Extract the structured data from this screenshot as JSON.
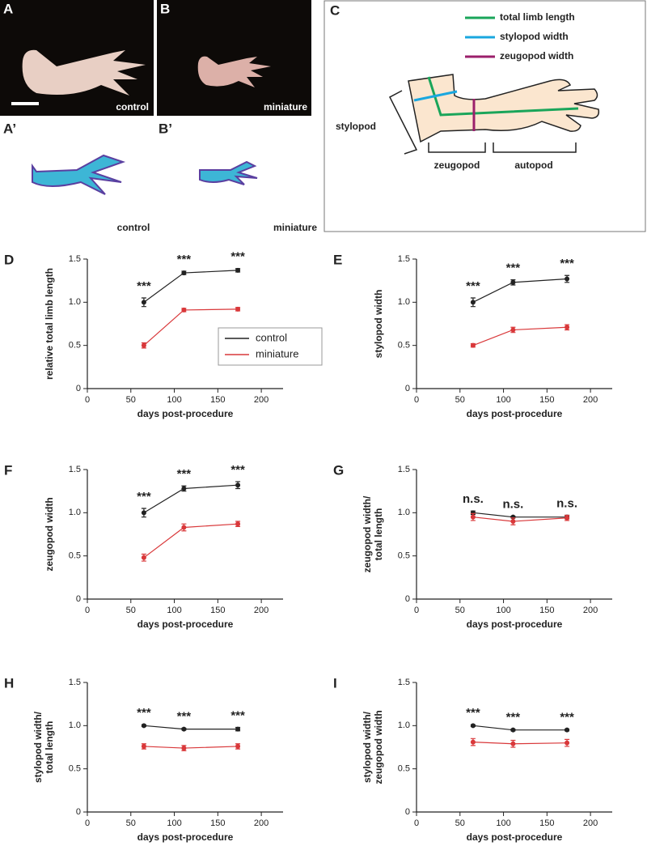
{
  "photos": [
    {
      "panel": "A",
      "label": "control"
    },
    {
      "panel": "B",
      "label": "miniature"
    }
  ],
  "stains": [
    {
      "panel": "A’",
      "label": "control"
    },
    {
      "panel": "B’",
      "label": "miniature"
    }
  ],
  "diagram": {
    "panel": "C",
    "legend": [
      "total limb length",
      "stylopod width",
      "zeugopod width"
    ],
    "regions": [
      "stylopod",
      "zeugopod",
      "autopod"
    ]
  },
  "chart_data": [
    {
      "type": "line",
      "panel": "D",
      "ylabel": [
        "relative total limb length"
      ],
      "xlabel": "days post-procedure",
      "xlim": [
        0,
        225
      ],
      "ylim": [
        0,
        1.5
      ],
      "xticks": [
        0,
        50,
        100,
        150,
        200
      ],
      "yticks": [
        0,
        0.5,
        {
          "value": 1,
          "label": "1.0"
        },
        1.5
      ],
      "x": [
        65,
        111,
        173
      ],
      "legend": "right",
      "annotations": [
        "***",
        "***",
        "***"
      ],
      "series": [
        {
          "name": "control",
          "color": "#222222",
          "values": [
            1.0,
            1.34,
            1.37
          ],
          "errors": [
            0.05,
            0.02,
            0.02
          ]
        },
        {
          "name": "miniature",
          "color": "#d9383a",
          "values": [
            0.5,
            0.91,
            0.92
          ],
          "errors": [
            0.03,
            0.02,
            0.02
          ]
        }
      ]
    },
    {
      "type": "line",
      "panel": "E",
      "ylabel": [
        "stylopod width"
      ],
      "xlabel": "days post-procedure",
      "xlim": [
        0,
        225
      ],
      "ylim": [
        0,
        1.5
      ],
      "xticks": [
        0,
        50,
        100,
        150,
        200
      ],
      "yticks": [
        0,
        0.5,
        {
          "value": 1,
          "label": "1.0"
        },
        1.5
      ],
      "x": [
        65,
        111,
        173
      ],
      "annotations": [
        "***",
        "***",
        "***"
      ],
      "series": [
        {
          "color": "#222222",
          "values": [
            1.0,
            1.23,
            1.27
          ],
          "errors": [
            0.05,
            0.03,
            0.04
          ]
        },
        {
          "color": "#d9383a",
          "values": [
            0.5,
            0.68,
            0.71
          ],
          "errors": [
            0.02,
            0.03,
            0.03
          ]
        }
      ]
    },
    {
      "type": "line",
      "panel": "F",
      "ylabel": [
        "zeugopod width"
      ],
      "xlabel": "days post-procedure",
      "xlim": [
        0,
        225
      ],
      "ylim": [
        0,
        1.5
      ],
      "xticks": [
        0,
        50,
        100,
        150,
        200
      ],
      "yticks": [
        0,
        0.5,
        {
          "value": 1,
          "label": "1.0"
        },
        1.5
      ],
      "x": [
        65,
        111,
        173
      ],
      "annotations": [
        "***",
        "***",
        "***"
      ],
      "series": [
        {
          "color": "#222222",
          "values": [
            1.0,
            1.28,
            1.32
          ],
          "errors": [
            0.05,
            0.03,
            0.04
          ]
        },
        {
          "color": "#d9383a",
          "values": [
            0.48,
            0.83,
            0.87
          ],
          "errors": [
            0.04,
            0.04,
            0.03
          ]
        }
      ]
    },
    {
      "type": "line",
      "panel": "G",
      "ylabel": [
        "zeugopod width/",
        "total length"
      ],
      "xlabel": "days post-procedure",
      "xlim": [
        0,
        225
      ],
      "ylim": [
        0,
        1.5
      ],
      "xticks": [
        0,
        50,
        100,
        150,
        200
      ],
      "yticks": [
        0,
        0.5,
        {
          "value": 1,
          "label": "1.0"
        },
        1.5
      ],
      "x": [
        65,
        111,
        173
      ],
      "annotations": [
        "n.s.",
        "n.s.",
        "n.s."
      ],
      "series": [
        {
          "color": "#222222",
          "values": [
            1.0,
            0.95,
            0.95
          ],
          "errors": [
            0.02,
            0.01,
            0.02
          ]
        },
        {
          "color": "#d9383a",
          "values": [
            0.95,
            0.9,
            0.94
          ],
          "errors": [
            0.04,
            0.04,
            0.03
          ]
        }
      ]
    },
    {
      "type": "line",
      "panel": "H",
      "ylabel": [
        "stylopod width/",
        "total length"
      ],
      "xlabel": "days post-procedure",
      "xlim": [
        0,
        225
      ],
      "ylim": [
        0,
        1.5
      ],
      "xticks": [
        0,
        50,
        100,
        150,
        200
      ],
      "yticks": [
        0,
        0.5,
        {
          "value": 1,
          "label": "1.0"
        },
        1.5
      ],
      "x": [
        65,
        111,
        173
      ],
      "annotations": [
        "***",
        "***",
        "***"
      ],
      "series": [
        {
          "color": "#222222",
          "values": [
            1.0,
            0.96,
            0.96
          ],
          "errors": [
            0.01,
            0.01,
            0.02
          ]
        },
        {
          "color": "#d9383a",
          "values": [
            0.76,
            0.74,
            0.76
          ],
          "errors": [
            0.03,
            0.03,
            0.03
          ]
        }
      ]
    },
    {
      "type": "line",
      "panel": "I",
      "ylabel": [
        "stylopod width/",
        "zeugopod width"
      ],
      "xlabel": "days post-procedure",
      "xlim": [
        0,
        225
      ],
      "ylim": [
        0,
        1.5
      ],
      "xticks": [
        0,
        50,
        100,
        150,
        200
      ],
      "yticks": [
        0,
        0.5,
        {
          "value": 1,
          "label": "1.0"
        },
        1.5
      ],
      "x": [
        65,
        111,
        173
      ],
      "annotations": [
        "***",
        "***",
        "***"
      ],
      "series": [
        {
          "color": "#222222",
          "values": [
            1.0,
            0.95,
            0.95
          ],
          "errors": [
            0.01,
            0.01,
            0.01
          ]
        },
        {
          "color": "#d9383a",
          "values": [
            0.81,
            0.79,
            0.8
          ],
          "errors": [
            0.04,
            0.04,
            0.04
          ]
        }
      ]
    }
  ]
}
